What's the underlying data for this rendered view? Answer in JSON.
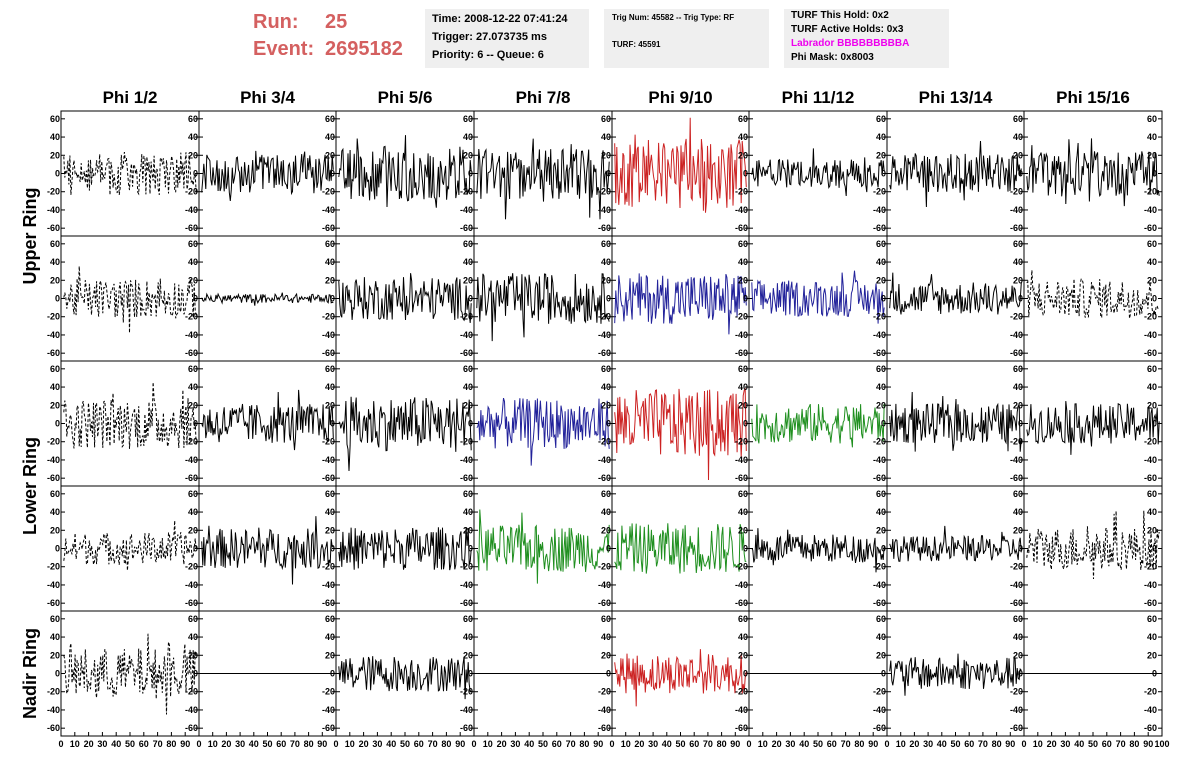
{
  "header": {
    "run_label": "Run:",
    "run_value": "25",
    "event_label": "Event:",
    "event_value": "2695182",
    "time_line": "Time: 2008-12-22 07:41:24",
    "trigger_line": "Trigger: 27.073735 ms",
    "priority_line": "Priority: 6 -- Queue: 6",
    "trig_num_line": "Trig Num: 45582 -- Trig Type: RF",
    "turf_line": "TURF: 45591",
    "turf_hold_line": "TURF This Hold: 0x2",
    "turf_active_line": "TURF Active Holds: 0x3",
    "labrador_line": "Labrador BBBBBBBBBA",
    "phi_mask_line": "Phi Mask: 0x8003",
    "labrador_color": "#ee00ee"
  },
  "chart_data": {
    "type": "line",
    "title": "",
    "columns": [
      "Phi 1/2",
      "Phi 3/4",
      "Phi 5/6",
      "Phi 7/8",
      "Phi 9/10",
      "Phi 11/12",
      "Phi 13/14",
      "Phi 15/16"
    ],
    "ring_groups": [
      {
        "label": "Upper Ring",
        "rows": [
          0,
          1
        ]
      },
      {
        "label": "Lower Ring",
        "rows": [
          2,
          3
        ]
      },
      {
        "label": "Nadir Ring",
        "rows": [
          4
        ]
      }
    ],
    "y_range": [
      -62,
      62
    ],
    "y_ticks": [
      -60,
      -40,
      -20,
      0,
      20,
      40,
      60
    ],
    "x_range": [
      0,
      100
    ],
    "x_ticks": [
      0,
      10,
      20,
      30,
      40,
      50,
      60,
      70,
      80,
      90,
      100
    ],
    "colors": {
      "black": "#000000",
      "red": "#cc2222",
      "blue": "#22229a",
      "green": "#1f8f1f"
    },
    "panels": [
      [
        {
          "style": "dashed",
          "color": "black",
          "amplitude": 24
        },
        {
          "style": "solid",
          "color": "black",
          "amplitude": 22
        },
        {
          "style": "solid",
          "color": "black",
          "amplitude": 30
        },
        {
          "style": "solid",
          "color": "black",
          "amplitude": 28
        },
        {
          "style": "solid",
          "color": "red",
          "amplitude": 38
        },
        {
          "style": "solid",
          "color": "black",
          "amplitude": 16
        },
        {
          "style": "solid",
          "color": "black",
          "amplitude": 22
        },
        {
          "style": "solid",
          "color": "black",
          "amplitude": 25
        }
      ],
      [
        {
          "style": "dashed",
          "color": "black",
          "amplitude": 22
        },
        {
          "style": "solid",
          "color": "black",
          "amplitude": 5
        },
        {
          "style": "solid",
          "color": "black",
          "amplitude": 24
        },
        {
          "style": "solid",
          "color": "black",
          "amplitude": 28
        },
        {
          "style": "solid",
          "color": "blue",
          "amplitude": 28
        },
        {
          "style": "solid",
          "color": "blue",
          "amplitude": 20
        },
        {
          "style": "solid",
          "color": "black",
          "amplitude": 18
        },
        {
          "style": "dashed",
          "color": "black",
          "amplitude": 22
        }
      ],
      [
        {
          "style": "dashed",
          "color": "black",
          "amplitude": 28
        },
        {
          "style": "solid",
          "color": "black",
          "amplitude": 22
        },
        {
          "style": "solid",
          "color": "black",
          "amplitude": 30
        },
        {
          "style": "solid",
          "color": "blue",
          "amplitude": 28
        },
        {
          "style": "solid",
          "color": "red",
          "amplitude": 38
        },
        {
          "style": "solid",
          "color": "green",
          "amplitude": 22
        },
        {
          "style": "solid",
          "color": "black",
          "amplitude": 22
        },
        {
          "style": "solid",
          "color": "black",
          "amplitude": 22
        }
      ],
      [
        {
          "style": "dashed",
          "color": "black",
          "amplitude": 18
        },
        {
          "style": "solid",
          "color": "black",
          "amplitude": 22
        },
        {
          "style": "solid",
          "color": "black",
          "amplitude": 24
        },
        {
          "style": "solid",
          "color": "green",
          "amplitude": 26
        },
        {
          "style": "solid",
          "color": "green",
          "amplitude": 28
        },
        {
          "style": "solid",
          "color": "black",
          "amplitude": 16
        },
        {
          "style": "solid",
          "color": "black",
          "amplitude": 14
        },
        {
          "style": "dashed",
          "color": "black",
          "amplitude": 24
        }
      ],
      [
        {
          "style": "dashed",
          "color": "black",
          "amplitude": 28
        },
        {
          "style": "flat",
          "color": "black",
          "amplitude": 0
        },
        {
          "style": "solid",
          "color": "black",
          "amplitude": 20
        },
        {
          "style": "flat",
          "color": "black",
          "amplitude": 0
        },
        {
          "style": "solid",
          "color": "red",
          "amplitude": 22
        },
        {
          "style": "flat",
          "color": "black",
          "amplitude": 0
        },
        {
          "style": "solid",
          "color": "black",
          "amplitude": 18
        },
        {
          "style": "flat",
          "color": "black",
          "amplitude": 0
        }
      ]
    ]
  }
}
